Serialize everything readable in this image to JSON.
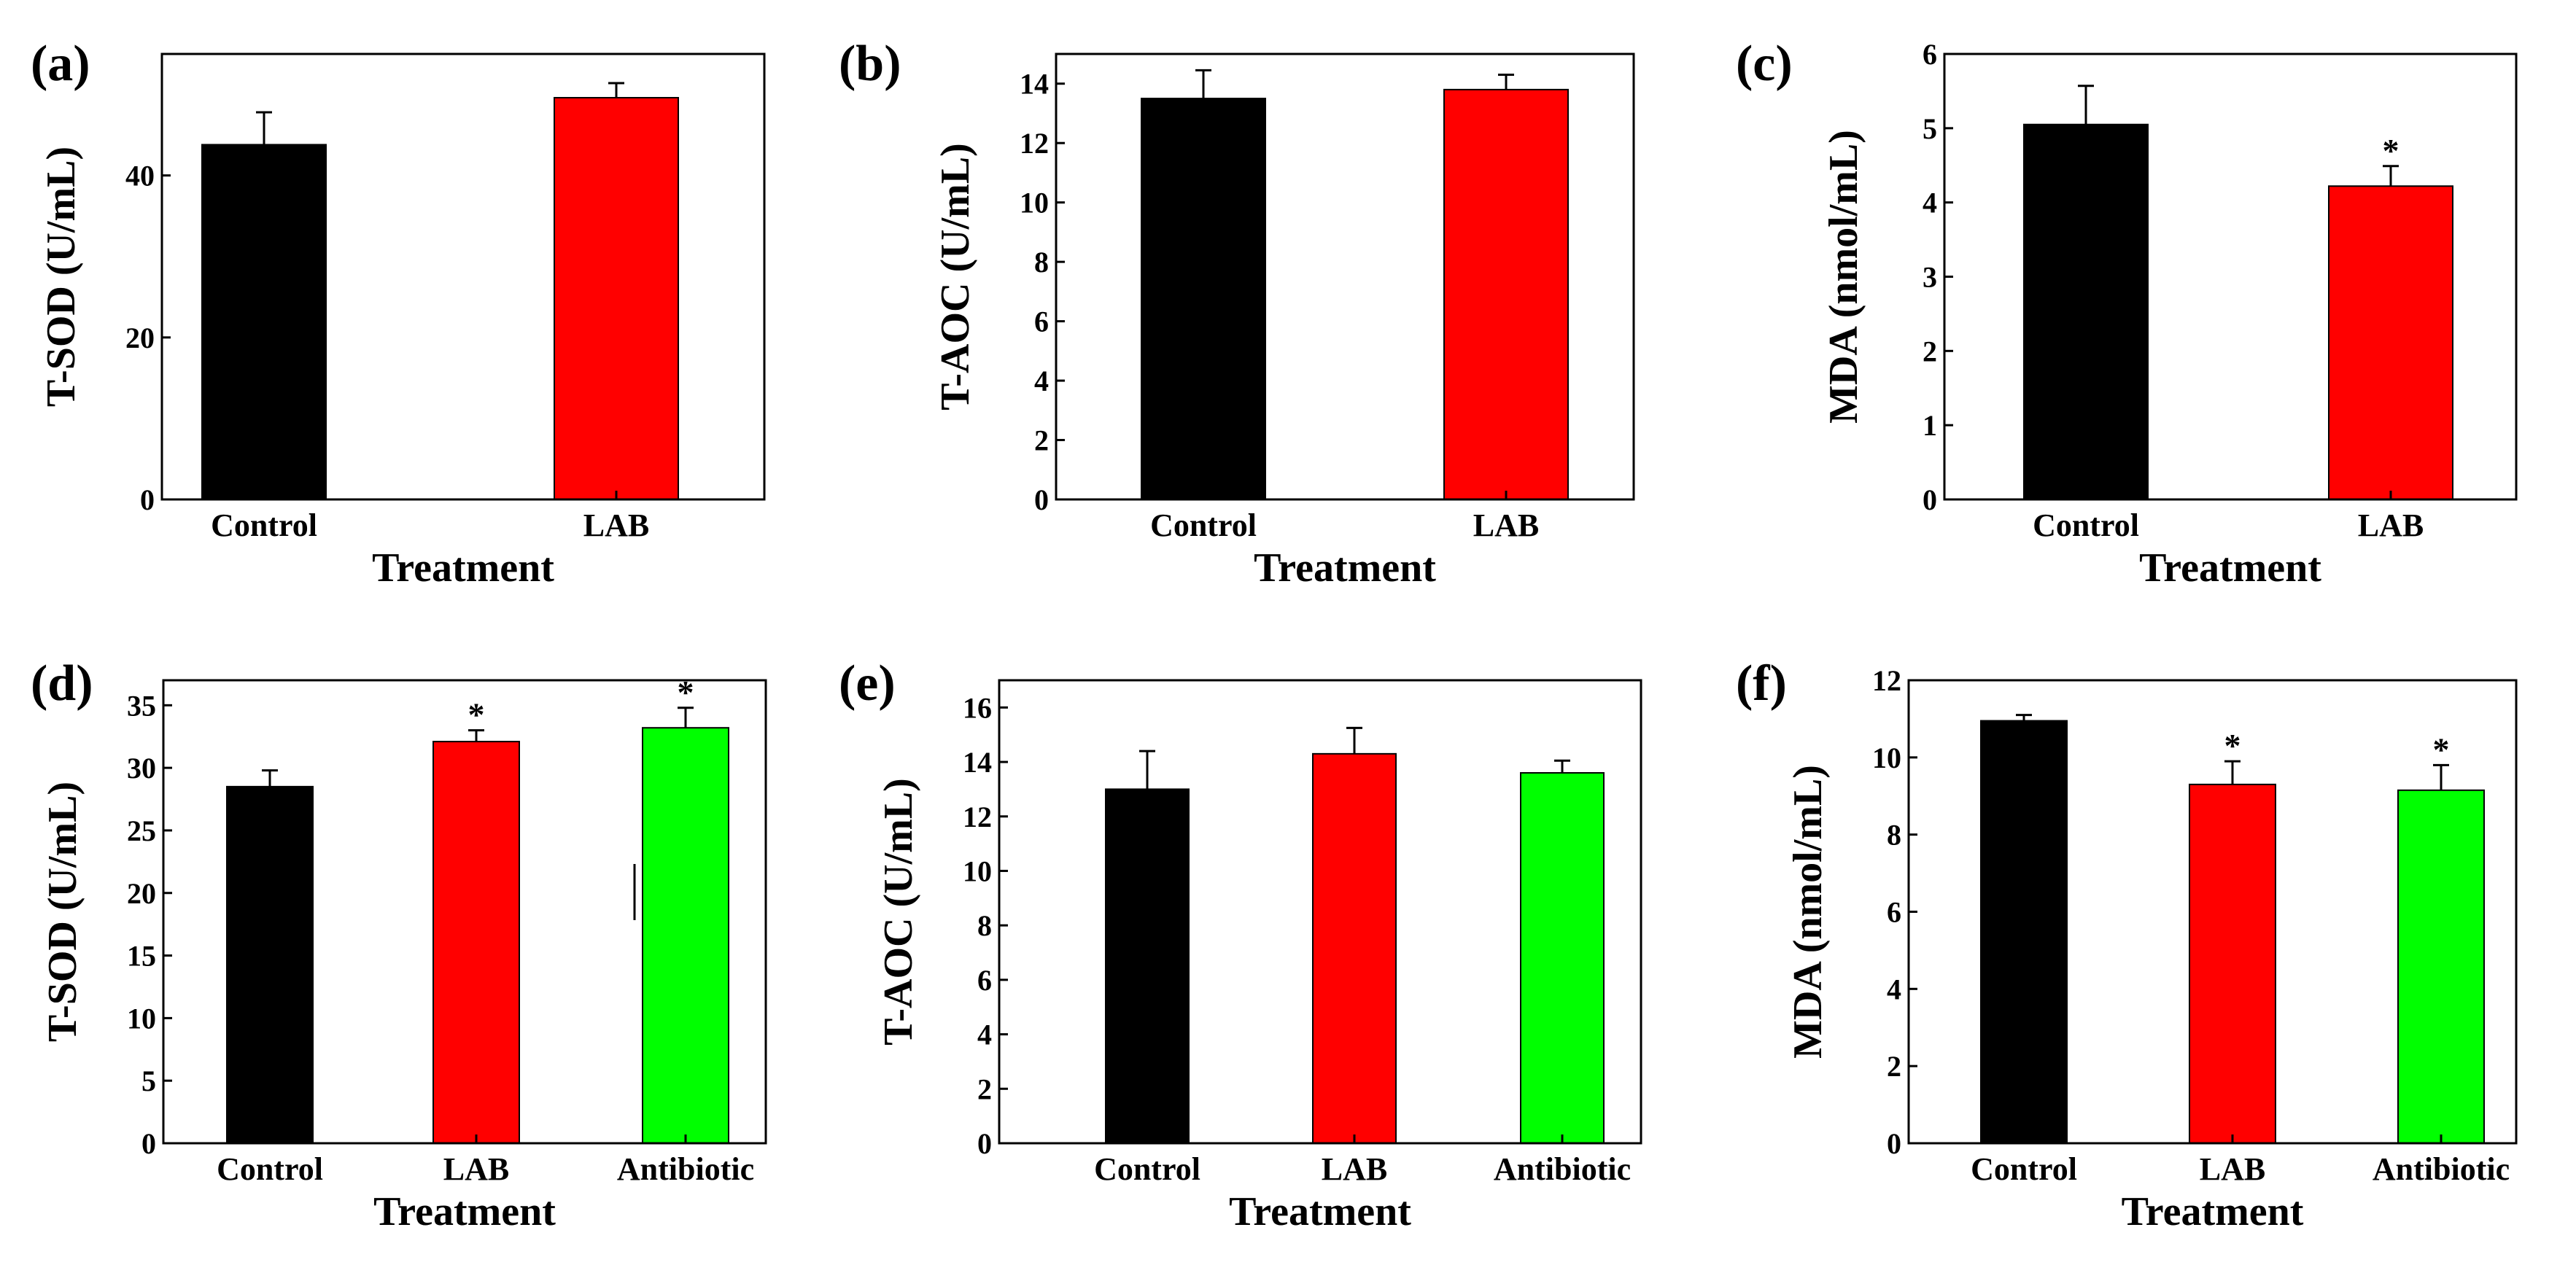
{
  "chart_data": [
    {
      "type": "bar",
      "panel": "(a)",
      "title": "",
      "xlabel": "Treatment",
      "ylabel": "T-SOD (U/mL)",
      "categories": [
        "Control",
        "LAB"
      ],
      "values": [
        43.8,
        49.6
      ],
      "errors": [
        4.0,
        1.8
      ],
      "significance": [
        "",
        ""
      ],
      "colors": [
        "#000000",
        "#ff0000"
      ],
      "ylim": [
        0,
        55
      ],
      "yticks": [
        0,
        20,
        40
      ],
      "yticklabels": [
        "0",
        "20",
        "40"
      ]
    },
    {
      "type": "bar",
      "panel": "(b)",
      "title": "",
      "xlabel": "Treatment",
      "ylabel": "T-AOC (U/mL)",
      "categories": [
        "Control",
        "LAB"
      ],
      "values": [
        13.5,
        13.8
      ],
      "errors": [
        0.95,
        0.5
      ],
      "significance": [
        "",
        ""
      ],
      "colors": [
        "#000000",
        "#ff0000"
      ],
      "ylim": [
        0,
        15
      ],
      "yticks": [
        0,
        2,
        4,
        6,
        8,
        10,
        12,
        14
      ],
      "yticklabels": [
        "0",
        "2",
        "4",
        "6",
        "8",
        "10",
        "12",
        "14"
      ]
    },
    {
      "type": "bar",
      "panel": "(c)",
      "title": "",
      "xlabel": "Treatment",
      "ylabel": "MDA (nmol/mL)",
      "categories": [
        "Control",
        "LAB"
      ],
      "values": [
        5.05,
        4.22
      ],
      "errors": [
        0.52,
        0.27
      ],
      "significance": [
        "",
        "*"
      ],
      "colors": [
        "#000000",
        "#ff0000"
      ],
      "ylim": [
        0,
        6
      ],
      "yticks": [
        0,
        1,
        2,
        3,
        4,
        5,
        6
      ],
      "yticklabels": [
        "0",
        "1",
        "2",
        "3",
        "4",
        "5",
        "6"
      ]
    },
    {
      "type": "bar",
      "panel": "(d)",
      "title": "",
      "xlabel": "Treatment",
      "ylabel": "T-SOD (U/mL)",
      "categories": [
        "Control",
        "LAB",
        "Antibiotic"
      ],
      "values": [
        28.5,
        32.1,
        33.2
      ],
      "errors": [
        1.3,
        0.9,
        1.6
      ],
      "significance": [
        "",
        "*",
        "*"
      ],
      "colors": [
        "#000000",
        "#ff0000",
        "#00ff00"
      ],
      "ylim": [
        0,
        37
      ],
      "yticks": [
        0,
        5,
        10,
        15,
        20,
        25,
        30,
        35
      ],
      "yticklabels": [
        "0",
        "5",
        "10",
        "15",
        "20",
        "25",
        "30",
        "35"
      ]
    },
    {
      "type": "bar",
      "panel": "(e)",
      "title": "",
      "xlabel": "Treatment",
      "ylabel": "T-AOC (U/mL)",
      "categories": [
        "Control",
        "LAB",
        "Antibiotic"
      ],
      "values": [
        13.0,
        14.3,
        13.6
      ],
      "errors": [
        1.4,
        0.95,
        0.45
      ],
      "significance": [
        "",
        "",
        ""
      ],
      "colors": [
        "#000000",
        "#ff0000",
        "#00ff00"
      ],
      "ylim": [
        0,
        17
      ],
      "yticks": [
        0,
        2,
        4,
        6,
        8,
        10,
        12,
        14,
        16
      ],
      "yticklabels": [
        "0",
        "2",
        "4",
        "6",
        "8",
        "10",
        "12",
        "14",
        "16"
      ]
    },
    {
      "type": "bar",
      "panel": "(f)",
      "title": "",
      "xlabel": "Treatment",
      "ylabel": "MDA (nmol/mL)",
      "categories": [
        "Control",
        "LAB",
        "Antibiotic"
      ],
      "values": [
        10.95,
        9.3,
        9.15
      ],
      "errors": [
        0.15,
        0.6,
        0.65
      ],
      "significance": [
        "",
        "*",
        "*"
      ],
      "colors": [
        "#000000",
        "#ff0000",
        "#00ff00"
      ],
      "ylim": [
        0,
        12
      ],
      "yticks": [
        0,
        2,
        4,
        6,
        8,
        10,
        12
      ],
      "yticklabels": [
        "0",
        "2",
        "4",
        "6",
        "8",
        "10",
        "12"
      ]
    }
  ]
}
